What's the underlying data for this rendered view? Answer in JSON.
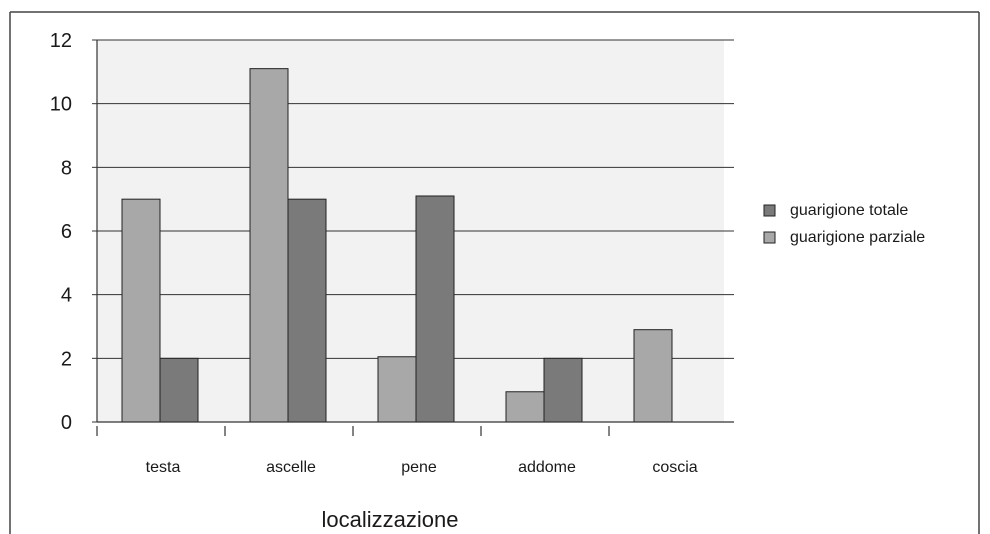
{
  "chart_data": {
    "type": "bar",
    "categories": [
      "testa",
      "ascelle",
      "pene",
      "addome",
      "coscia"
    ],
    "series": [
      {
        "name": "guarigione parziale",
        "values": [
          7,
          11.1,
          2.05,
          0.95,
          2.9
        ],
        "color": "#a8a8a8"
      },
      {
        "name": "guarigione totale",
        "values": [
          2,
          7,
          7.1,
          2,
          null
        ],
        "color": "#7a7a7a"
      }
    ],
    "title": "",
    "xlabel": "localizzazione",
    "ylabel": "",
    "ylim": [
      0,
      12
    ],
    "yticks": [
      "0",
      "2",
      "4",
      "6",
      "8",
      "10",
      "12"
    ],
    "grid": true,
    "legend_position": "right",
    "legend": [
      "guarigione totale",
      "guarigione parziale"
    ],
    "plot_background": "#f2f2f2"
  }
}
